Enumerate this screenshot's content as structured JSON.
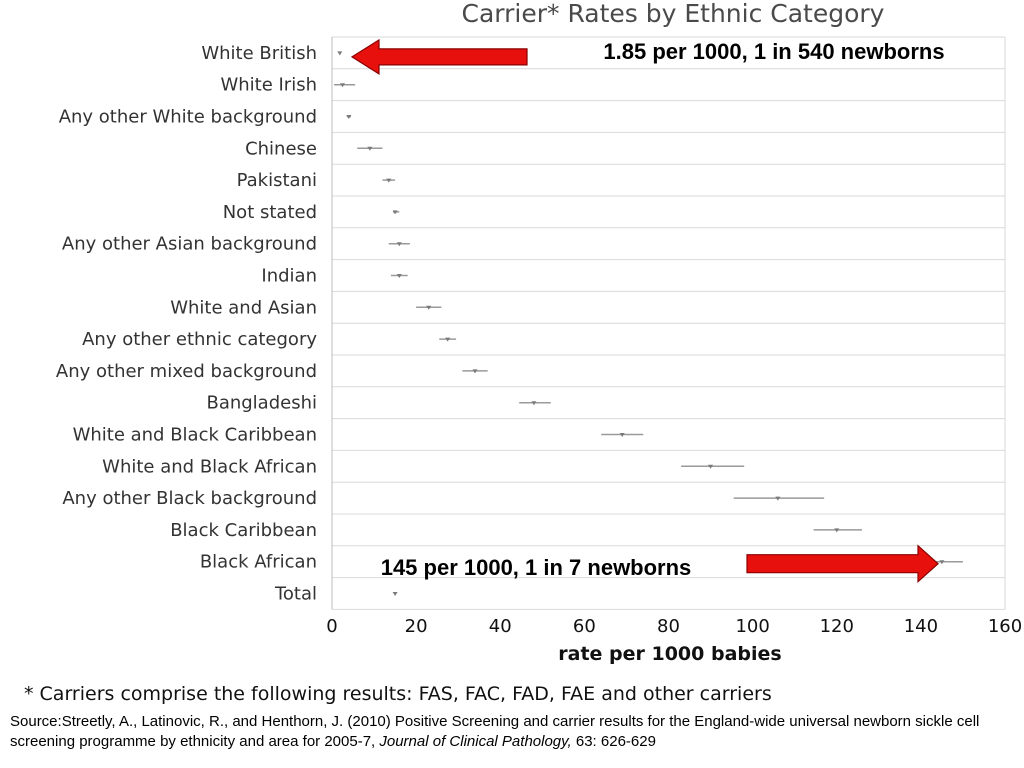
{
  "chart_data": {
    "type": "forest",
    "title": "Carrier* Rates by Ethnic Category",
    "xlabel": "rate per 1000 babies",
    "xlim": [
      0,
      160
    ],
    "xticks": [
      0,
      20,
      40,
      60,
      80,
      100,
      120,
      140,
      160
    ],
    "grid": "horizontal",
    "categories": [
      "White British",
      "White Irish",
      "Any other White background",
      "Chinese",
      "Pakistani",
      "Not stated",
      "Any other Asian background",
      "Indian",
      "White and Asian",
      "Any other ethnic category",
      "Any other mixed background",
      "Bangladeshi",
      "White and Black Caribbean",
      "White and Black African",
      "Any other Black background",
      "Black Caribbean",
      "Black African",
      "Total"
    ],
    "values": [
      1.85,
      2.5,
      4,
      9,
      13.5,
      15,
      16,
      16,
      23,
      27.5,
      34,
      48,
      69,
      90,
      106,
      120,
      145,
      15
    ],
    "ci_low": [
      1.6,
      0.5,
      3.5,
      6,
      12,
      14.5,
      13.5,
      14,
      20,
      25.5,
      31,
      44.5,
      64,
      83,
      95.5,
      114.5,
      143,
      14.8
    ],
    "ci_high": [
      2.1,
      5.5,
      4.5,
      12,
      15,
      16,
      18.5,
      18,
      26,
      29.5,
      37,
      52,
      74,
      98,
      117,
      126,
      150,
      15.2
    ],
    "annotations": [
      {
        "text": "1.85 per 1000, 1 in 540 newborns",
        "target": "White British"
      },
      {
        "text": "145 per 1000, 1 in 7 newborns",
        "target": "Black African"
      }
    ],
    "arrow_color": "#e8100c"
  },
  "footnote": "* Carriers  comprise the following results: FAS, FAC, FAD, FAE and other carriers",
  "source": {
    "prefix": "Source:Streetly, A., Latinovic, R., and Henthorn, J. (2010) Positive Screening and carrier results for the England-wide universal newborn sickle cell screening programme by ethnicity and area for 2005-7, ",
    "journal": "Journal of Clinical Pathology,",
    "suffix": " 63: 626-629"
  }
}
